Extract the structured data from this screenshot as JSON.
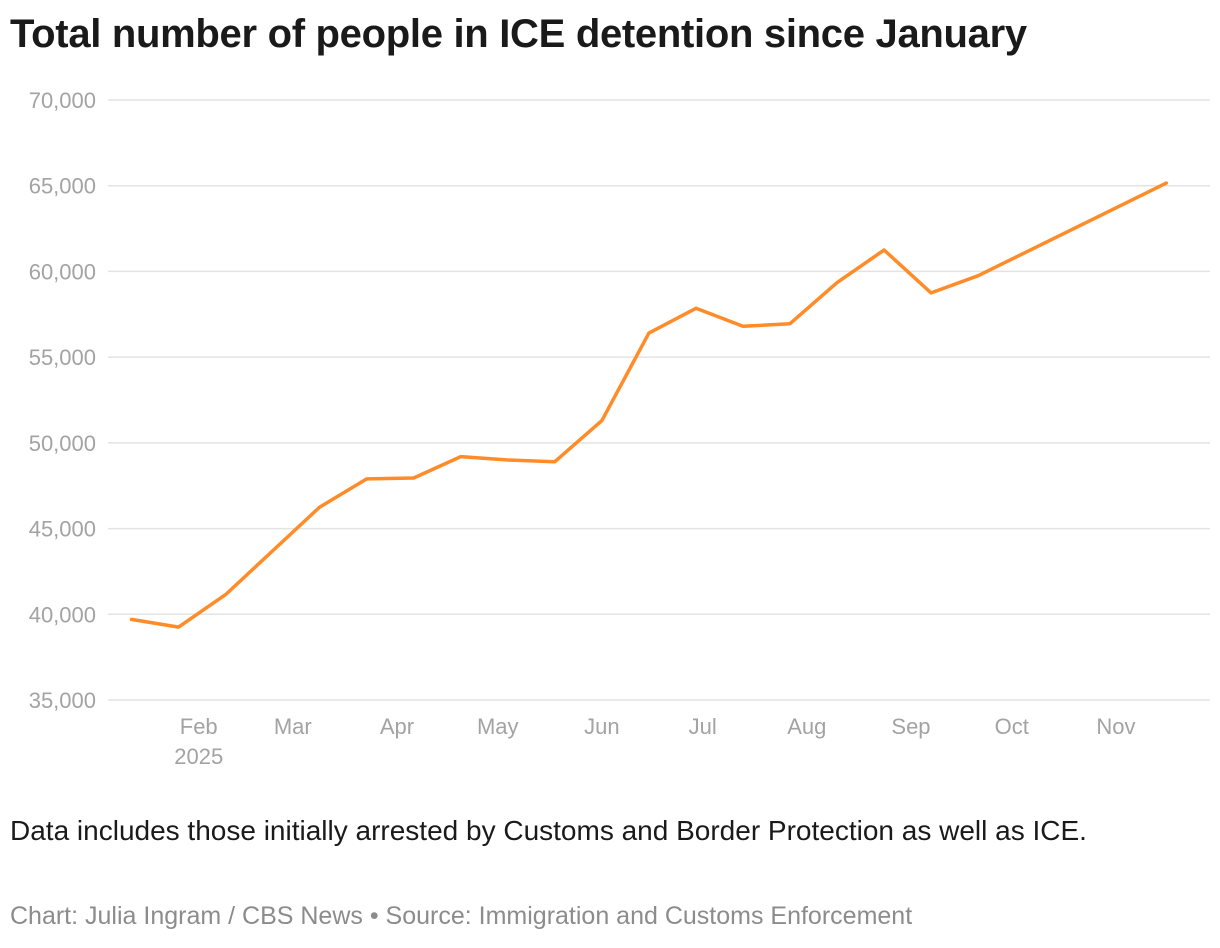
{
  "chart_data": {
    "type": "line",
    "title": "Total number of people in ICE detention since January",
    "xlabel": "",
    "ylabel": "",
    "ylim": [
      35000,
      70000
    ],
    "yticks": [
      35000,
      40000,
      45000,
      50000,
      55000,
      60000,
      65000,
      70000
    ],
    "ytick_labels": [
      "35,000",
      "40,000",
      "45,000",
      "50,000",
      "55,000",
      "60,000",
      "65,000",
      "70,000"
    ],
    "xlim": [
      "2025-01-05",
      "2025-11-29"
    ],
    "xticks": [
      "2025-02-01",
      "2025-03-01",
      "2025-04-01",
      "2025-05-01",
      "2025-06-01",
      "2025-07-01",
      "2025-08-01",
      "2025-09-01",
      "2025-10-01",
      "2025-11-01"
    ],
    "xtick_labels": [
      "Feb",
      "Mar",
      "Apr",
      "May",
      "Jun",
      "Jul",
      "Aug",
      "Sep",
      "Oct",
      "Nov"
    ],
    "xtick_sublabel": "2025",
    "grid": true,
    "color": "#ff8c28",
    "x": [
      "2025-01-12",
      "2025-01-26",
      "2025-02-09",
      "2025-02-23",
      "2025-03-09",
      "2025-03-23",
      "2025-04-06",
      "2025-04-20",
      "2025-05-04",
      "2025-05-18",
      "2025-06-01",
      "2025-06-15",
      "2025-06-29",
      "2025-07-13",
      "2025-07-27",
      "2025-08-10",
      "2025-08-24",
      "2025-09-07",
      "2025-09-21",
      "2025-11-16"
    ],
    "values": [
      39700,
      39250,
      41150,
      43700,
      46250,
      47900,
      47950,
      49200,
      49000,
      48900,
      51300,
      56400,
      57850,
      56800,
      56950,
      59350,
      61250,
      58750,
      59750,
      65150
    ]
  },
  "note": "Data includes those initially arrested by Customs and Border Protection as well as ICE.",
  "credit": "Chart: Julia Ingram / CBS News • Source: Immigration and Customs Enforcement"
}
